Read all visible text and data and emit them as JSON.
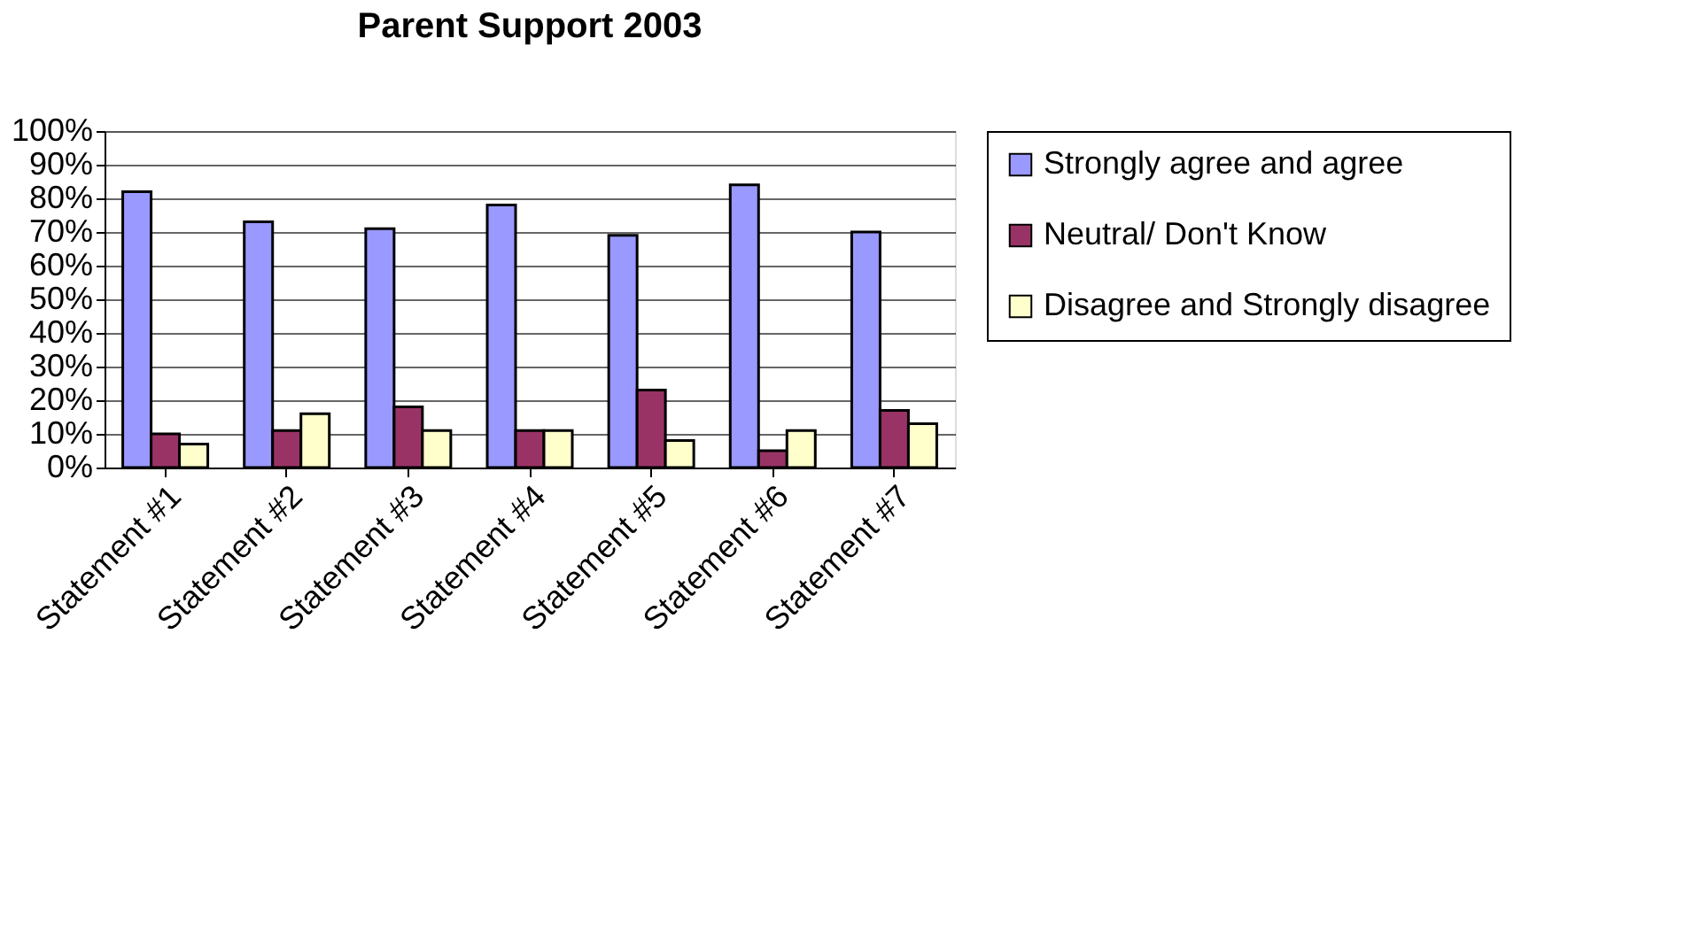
{
  "chart_data": {
    "type": "bar",
    "title": "Parent Support 2003",
    "categories": [
      "Statement #1",
      "Statement #2",
      "Statement #3",
      "Statement #4",
      "Statement #5",
      "Statement #6",
      "Statement #7"
    ],
    "series": [
      {
        "name": "Strongly agree and agree",
        "color": "#9999ff",
        "values": [
          82,
          73,
          71,
          78,
          69,
          84,
          70
        ]
      },
      {
        "name": "Neutral/ Don't Know",
        "color": "#993366",
        "values": [
          10,
          11,
          18,
          11,
          23,
          5,
          17
        ]
      },
      {
        "name": "Disagree and Strongly disagree",
        "color": "#ffffcc",
        "values": [
          7,
          16,
          11,
          11,
          8,
          11,
          13
        ]
      }
    ],
    "ylim": [
      0,
      100
    ],
    "yticks": [
      {
        "value": 0,
        "label": "0%"
      },
      {
        "value": 10,
        "label": "10%"
      },
      {
        "value": 20,
        "label": "20%"
      },
      {
        "value": 30,
        "label": "30%"
      },
      {
        "value": 40,
        "label": "40%"
      },
      {
        "value": 50,
        "label": "50%"
      },
      {
        "value": 60,
        "label": "60%"
      },
      {
        "value": 70,
        "label": "70%"
      },
      {
        "value": 80,
        "label": "80%"
      },
      {
        "value": 90,
        "label": "90%"
      },
      {
        "value": 100,
        "label": "100%"
      }
    ],
    "grid": "y",
    "legend": "right"
  }
}
